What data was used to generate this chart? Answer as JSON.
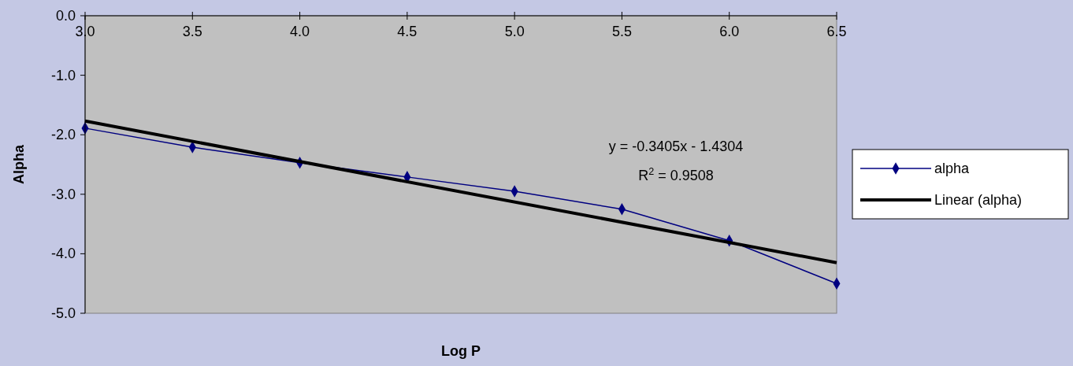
{
  "chart_data": {
    "type": "line",
    "xlabel": "Log P",
    "ylabel": "Alpha",
    "x": [
      3.0,
      3.5,
      4.0,
      4.5,
      5.0,
      5.5,
      6.0,
      6.5
    ],
    "series": [
      {
        "name": "alpha",
        "color": "#000080",
        "values": [
          -1.89,
          -2.21,
          -2.47,
          -2.71,
          -2.95,
          -3.25,
          -3.78,
          -4.5
        ],
        "marker": "diamond"
      },
      {
        "name": "Linear (alpha)",
        "color": "#000000",
        "type": "line",
        "x": [
          3.0,
          6.5
        ],
        "values": [
          -1.77,
          -4.15
        ],
        "marker": "none"
      }
    ],
    "xlim": [
      3.0,
      6.5
    ],
    "xticks": [
      {
        "value": 3.0,
        "label": "3.0"
      },
      {
        "value": 3.5,
        "label": "3.5"
      },
      {
        "value": 4.0,
        "label": "4.0"
      },
      {
        "value": 4.5,
        "label": "4.5"
      },
      {
        "value": 5.0,
        "label": "5.0"
      },
      {
        "value": 5.5,
        "label": "5.5"
      },
      {
        "value": 6.0,
        "label": "6.0"
      },
      {
        "value": 6.5,
        "label": "6.5"
      }
    ],
    "ylim": [
      -5.0,
      0.0
    ],
    "yticks": [
      {
        "value": -5,
        "label": "-5.0"
      },
      {
        "value": -4,
        "label": "-4.0"
      },
      {
        "value": -3,
        "label": "-3.0"
      },
      {
        "value": -2,
        "label": "-2.0"
      },
      {
        "value": -1,
        "label": "-1.0"
      },
      {
        "value": 0,
        "label": "0.0"
      }
    ],
    "annotations": [
      "y = -0.3405x - 1.4304",
      "R$^{2}$ = 0.9508"
    ],
    "legend": "right",
    "grid": false
  }
}
